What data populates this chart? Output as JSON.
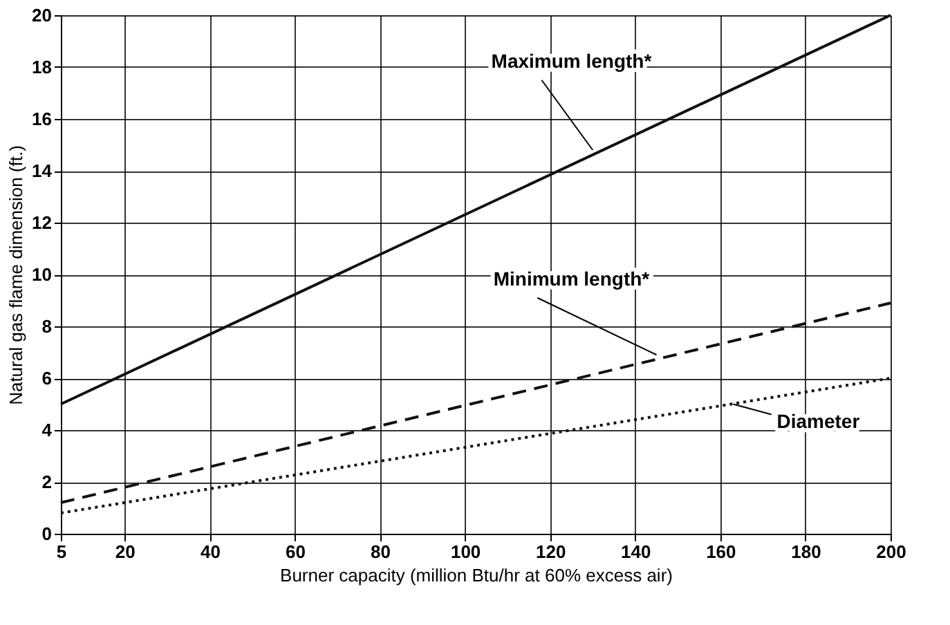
{
  "chart_data": {
    "type": "line",
    "xlabel": "Burner capacity (million Btu/hr at 60% excess air)",
    "ylabel": "Natural gas flame dimension (ft.)",
    "x": [
      5,
      200
    ],
    "series": [
      {
        "name": "Maximum length*",
        "color": "#111111",
        "line_style": "solid",
        "values": [
          5,
          20
        ]
      },
      {
        "name": "Minimum length*",
        "color": "#111111",
        "line_style": "dashed",
        "values": [
          1.2,
          8.9
        ]
      },
      {
        "name": "Diameter",
        "color": "#111111",
        "line_style": "dotted",
        "values": [
          0.8,
          6
        ]
      }
    ],
    "xlim": [
      5,
      200
    ],
    "xticks": [
      5,
      20,
      40,
      60,
      80,
      100,
      120,
      140,
      160,
      180,
      200
    ],
    "ylim": [
      0,
      20
    ],
    "yticks": [
      0,
      2,
      4,
      6,
      8,
      10,
      12,
      14,
      16,
      18,
      20
    ],
    "grid": true,
    "legend": false
  }
}
